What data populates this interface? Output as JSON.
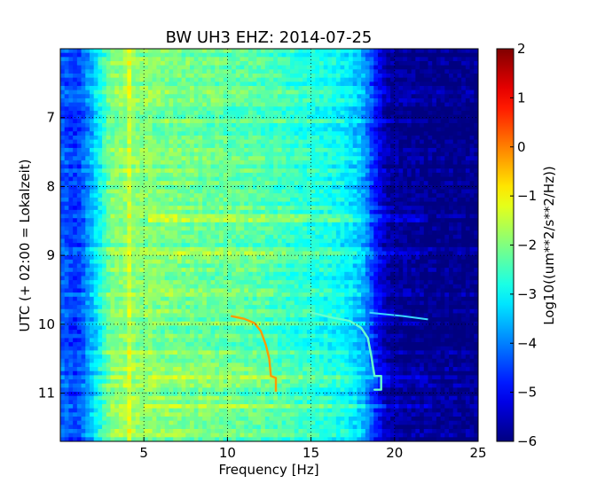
{
  "chart_data": {
    "type": "heatmap",
    "title": "BW UH3 EHZ: 2014-07-25",
    "xlabel": "Frequency [Hz]",
    "ylabel": "UTC (+ 02:00 = Lokalzeit)",
    "xlim": [
      0,
      25
    ],
    "ylim": [
      11.7,
      6.0
    ],
    "x_ticks": [
      5,
      10,
      15,
      20,
      25
    ],
    "y_ticks": [
      7,
      8,
      9,
      10,
      11
    ],
    "grid": true,
    "colorscale": "jet",
    "colorbar": {
      "label": "Log10((um**2/s**2/Hz))",
      "range": [
        -6,
        2
      ],
      "ticks": [
        2,
        1,
        0,
        -1,
        -2,
        -3,
        -4,
        -5,
        -6
      ]
    },
    "spectral_profile": {
      "frequency_hz": [
        0,
        1,
        2,
        3,
        4,
        5,
        6,
        8,
        10,
        12,
        14,
        16,
        17,
        18,
        18.5,
        19,
        19.5,
        20,
        22,
        25
      ],
      "log10_psd": [
        -4.2,
        -4.6,
        -3.4,
        -2.0,
        -1.8,
        -1.9,
        -2.0,
        -2.1,
        -2.2,
        -2.3,
        -2.6,
        -2.8,
        -3.0,
        -3.5,
        -4.2,
        -5.0,
        -5.6,
        -5.8,
        -5.9,
        -5.9
      ]
    },
    "annotations": [
      {
        "name": "narrow line near 4 Hz",
        "x": [
          4.0,
          4.0
        ],
        "y": [
          6.0,
          11.7
        ]
      },
      {
        "name": "broadband band near 8.5 UTC",
        "x": [
          7,
          22
        ],
        "y": [
          8.45,
          8.45
        ]
      },
      {
        "name": "chirp curve 1",
        "x": [
          10.2,
          11.0,
          11.6,
          12.0,
          12.3,
          12.5,
          12.6,
          12.9,
          12.9
        ],
        "y": [
          9.88,
          9.92,
          9.98,
          10.1,
          10.3,
          10.5,
          10.75,
          10.78,
          10.98
        ]
      },
      {
        "name": "chirp curve 2",
        "x": [
          15.0,
          16.2,
          17.3,
          18.0,
          18.4,
          18.6,
          18.8,
          19.2,
          19.2,
          18.8,
          19.2
        ],
        "y": [
          9.83,
          9.9,
          9.95,
          10.05,
          10.2,
          10.45,
          10.75,
          10.75,
          10.95,
          10.95,
          10.95
        ]
      },
      {
        "name": "drift line",
        "x": [
          18.5,
          20.5,
          22.0
        ],
        "y": [
          9.83,
          9.88,
          9.93
        ]
      }
    ]
  }
}
